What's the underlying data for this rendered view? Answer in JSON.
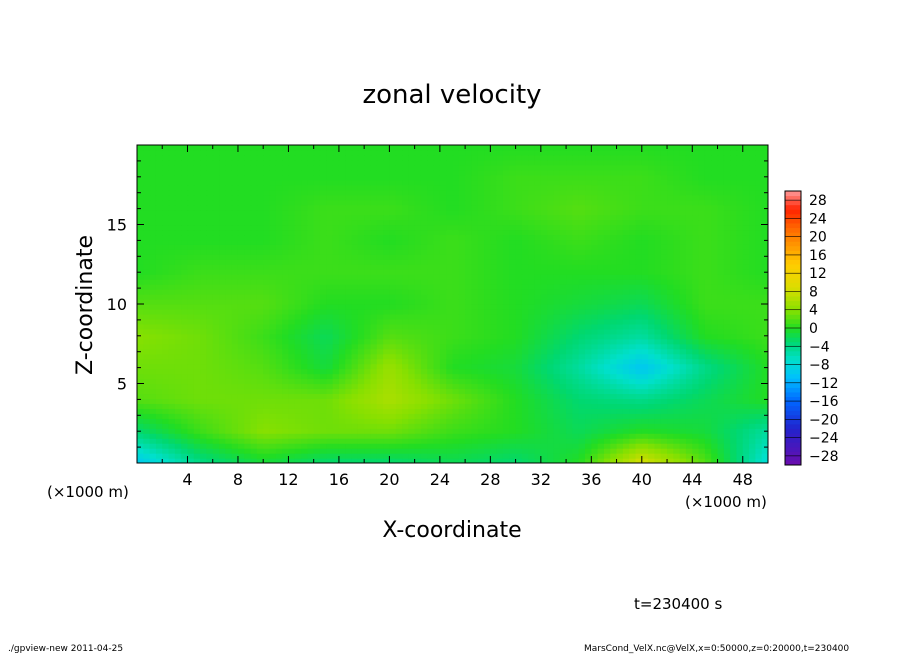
{
  "chart_data": {
    "type": "heatmap",
    "title": "zonal velocity",
    "xlabel": "X-coordinate",
    "ylabel": "Z-coordinate",
    "x_unit": "(×1000 m)",
    "y_unit": "(×1000 m)",
    "xlim": [
      0,
      50
    ],
    "ylim": [
      0,
      20
    ],
    "x_ticks": [
      4,
      8,
      12,
      16,
      20,
      24,
      28,
      32,
      36,
      40,
      44,
      48
    ],
    "y_ticks": [
      5,
      10,
      15
    ],
    "colorbar": {
      "levels": [
        28,
        24,
        20,
        16,
        12,
        8,
        4,
        0,
        -4,
        -8,
        -12,
        -16,
        -20,
        -24,
        -28
      ],
      "labels": [
        "28",
        "24",
        "20",
        "16",
        "12",
        "8",
        "4",
        "0",
        "−4",
        "−8",
        "−12",
        "−16",
        "−20",
        "−24",
        "−28"
      ],
      "range": [
        -30,
        30
      ]
    },
    "field_x": [
      0,
      5,
      10,
      15,
      20,
      25,
      30,
      35,
      40,
      45,
      50
    ],
    "field_z": [
      0,
      2,
      4,
      6,
      8,
      10,
      12,
      14,
      16,
      18,
      20
    ],
    "field_values": [
      [
        -10,
        -4,
        -1,
        -3,
        -3,
        -2,
        -3,
        0,
        9,
        2,
        -8
      ],
      [
        -3,
        1,
        4,
        3,
        3,
        1,
        0,
        -2,
        0,
        -1,
        -5
      ],
      [
        2,
        3,
        3,
        3,
        6,
        3,
        0,
        -3,
        -4,
        -2,
        0
      ],
      [
        3,
        3,
        2,
        -1,
        5,
        0,
        -1,
        -5,
        -10,
        -4,
        0
      ],
      [
        4,
        3,
        1,
        -2,
        2,
        1,
        0,
        -3,
        -5,
        0,
        1
      ],
      [
        2,
        2,
        2,
        0,
        0,
        1,
        0,
        -1,
        -2,
        1,
        1
      ],
      [
        0,
        1,
        1,
        1,
        1,
        1,
        0,
        0,
        0,
        1,
        0
      ],
      [
        0,
        0,
        0,
        1,
        0,
        1,
        0,
        1,
        0,
        1,
        0
      ],
      [
        0,
        0,
        0,
        1,
        1,
        0,
        1,
        2,
        1,
        1,
        0
      ],
      [
        0,
        0,
        0,
        0,
        0,
        0,
        1,
        1,
        1,
        0,
        0
      ],
      [
        0,
        0,
        0,
        0,
        0,
        0,
        0,
        0,
        0,
        0,
        0
      ]
    ]
  },
  "time_label": "t=230400 s",
  "footer": {
    "left": "./gpview-new   2011-04-25",
    "right": "MarsCond_VelX.nc@VelX,x=0:50000,z=0:20000,t=230400"
  },
  "colors": {
    "palette": [
      "#6a0dad",
      "#2222cc",
      "#0066ff",
      "#00bbff",
      "#00e0cc",
      "#00d870",
      "#22dd22",
      "#88e000",
      "#dddd00",
      "#ffcc00",
      "#ff9900",
      "#ff6600",
      "#ff2200",
      "#ff4444",
      "#ff9999"
    ]
  }
}
